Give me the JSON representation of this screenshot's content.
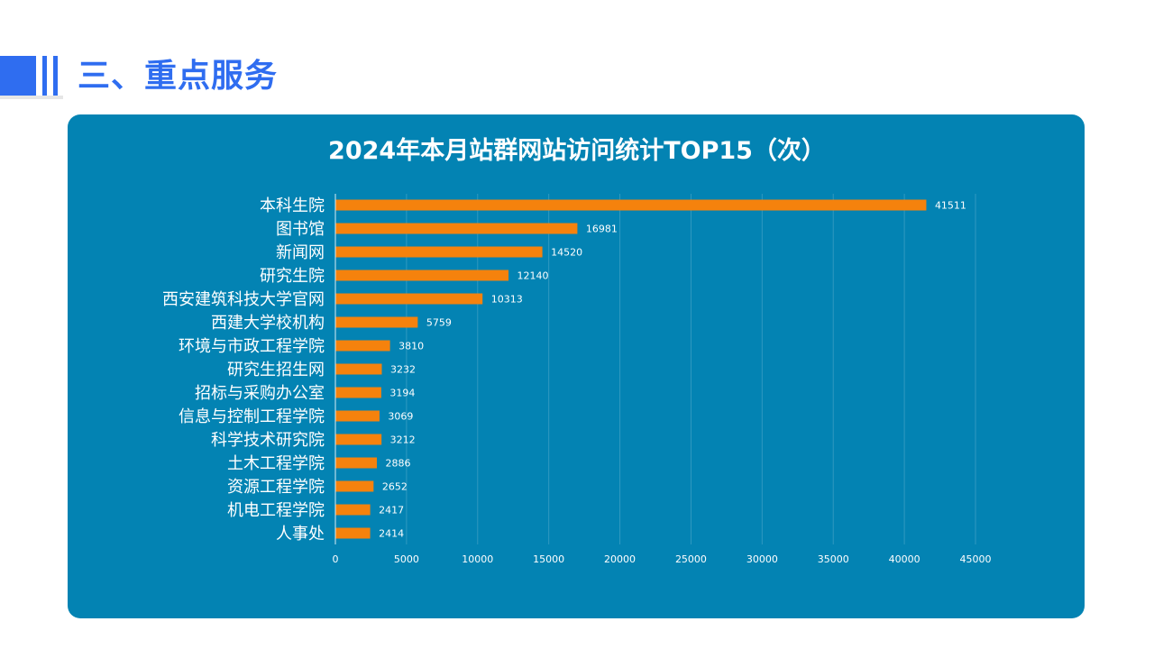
{
  "page": {
    "title": "三、重点服务"
  },
  "chart_data": {
    "type": "bar",
    "orientation": "horizontal",
    "title": "2024年本月站群网站访问统计TOP15（次）",
    "categories": [
      "本科生院",
      "图书馆",
      "新闻网",
      "研究生院",
      "西安建筑科技大学官网",
      "西建大学校机构",
      "环境与市政工程学院",
      "研究生招生网",
      "招标与采购办公室",
      "信息与控制工程学院",
      "科学技术研究院",
      "土木工程学院",
      "资源工程学院",
      "机电工程学院",
      "人事处"
    ],
    "values": [
      41511,
      16981,
      14520,
      12140,
      10313,
      5759,
      3810,
      3232,
      3194,
      3069,
      3212,
      2886,
      2652,
      2417,
      2414
    ],
    "xlim": [
      0,
      45000
    ],
    "xticks": [
      0,
      5000,
      10000,
      15000,
      20000,
      25000,
      30000,
      35000,
      40000,
      45000
    ],
    "grid": true,
    "data_labels": true,
    "colors": {
      "bar": "#f5820d",
      "panel": "#0383b3",
      "accent": "#2f6df0",
      "text": "#ffffff"
    }
  }
}
